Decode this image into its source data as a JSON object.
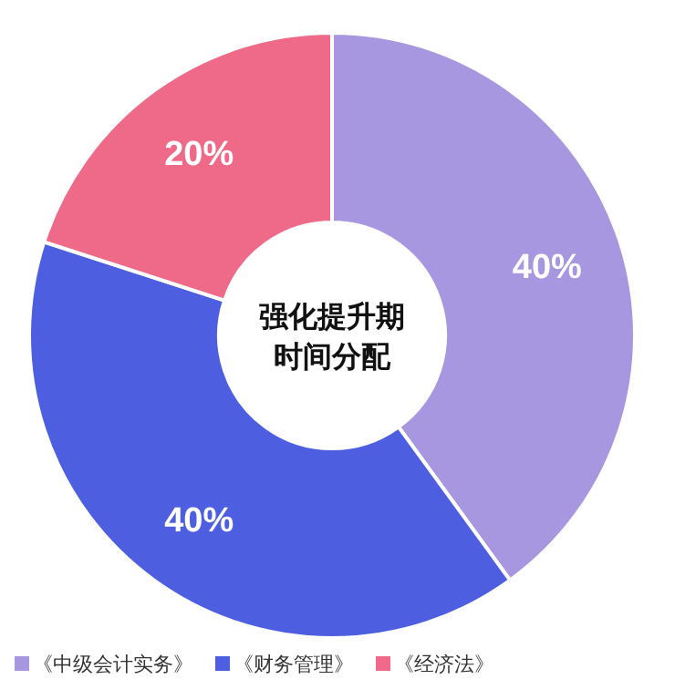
{
  "chart_data": {
    "type": "donut",
    "title": "强化提升期时间分配",
    "categories": [
      "《中级会计实务》",
      "《财务管理》",
      "《经济法》"
    ],
    "values": [
      40,
      40,
      20
    ],
    "colors": [
      "#a796e0",
      "#4d5fe0",
      "#ee6a88"
    ],
    "value_labels": [
      "40%",
      "40%",
      "20%"
    ],
    "legend": "bottom"
  }
}
